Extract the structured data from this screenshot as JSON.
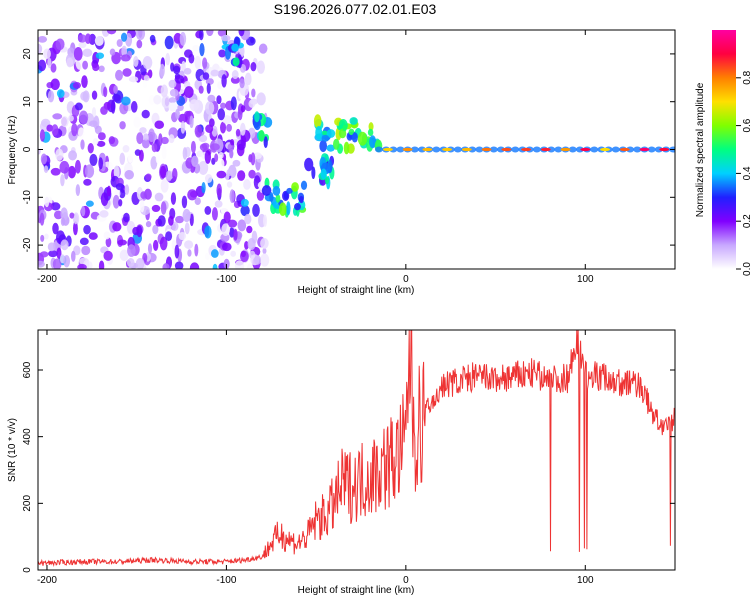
{
  "title": "S196.2026.077.02.01.E03",
  "chart_data": [
    {
      "type": "heatmap",
      "xlabel": "Height of straight line (km)",
      "ylabel": "Frequency (Hz)",
      "xlim": [
        -205,
        150
      ],
      "ylim": [
        -25,
        25
      ],
      "xticks": [
        -200,
        -100,
        0,
        100
      ],
      "yticks": [
        -20,
        -10,
        0,
        10,
        20
      ],
      "colorbar": {
        "label": "Normalized spectral amplitude",
        "range": [
          0,
          1
        ],
        "ticks": [
          "0.0",
          "0.2",
          "0.4",
          "0.6",
          "0.8"
        ],
        "colors": [
          "#ffffff",
          "#c8a8ff",
          "#8000ff",
          "#2020ff",
          "#00d0ff",
          "#00ff80",
          "#80ff00",
          "#ffe000",
          "#ff8000",
          "#ff0040",
          "#ff00a0"
        ]
      },
      "features": [
        {
          "x_range": [
            -205,
            -78
          ],
          "freq_range": [
            -25,
            25
          ],
          "kind": "noise",
          "level": 0.25
        },
        {
          "x_range": [
            -100,
            -92
          ],
          "freq_center": 20,
          "kind": "blob",
          "level": 0.45
        },
        {
          "x_range": [
            -85,
            -77
          ],
          "freq_center": 4,
          "kind": "blob",
          "level": 0.5
        },
        {
          "x_range": [
            -78,
            -55
          ],
          "freq_center": -10,
          "kind": "blob",
          "level": 0.55
        },
        {
          "x_range": [
            -55,
            -40
          ],
          "freq_center": -4,
          "kind": "blob",
          "level": 0.45
        },
        {
          "x_range": [
            -50,
            -15
          ],
          "freq_center": 3,
          "kind": "blob",
          "level": 0.6
        },
        {
          "x_range": [
            -15,
            150
          ],
          "freq_center": 0,
          "kind": "carrier",
          "level": 0.95
        }
      ]
    },
    {
      "type": "line",
      "xlabel": "Height of straight line (km)",
      "ylabel": "SNR (10 * v/v)",
      "xlim": [
        -205,
        150
      ],
      "ylim": [
        0,
        720
      ],
      "xticks": [
        -200,
        -100,
        0,
        100
      ],
      "yticks": [
        0,
        200,
        400,
        600
      ],
      "series": [
        {
          "name": "SNR",
          "color": "#ee3333",
          "x": [
            -205,
            -180,
            -160,
            -140,
            -120,
            -100,
            -90,
            -80,
            -75,
            -70,
            -65,
            -60,
            -55,
            -50,
            -45,
            -40,
            -35,
            -30,
            -25,
            -20,
            -15,
            -10,
            -5,
            0,
            2,
            5,
            10,
            15,
            20,
            25,
            30,
            40,
            50,
            60,
            70,
            80,
            90,
            95,
            100,
            110,
            120,
            130,
            135,
            140,
            145,
            150
          ],
          "y": [
            20,
            25,
            25,
            30,
            25,
            25,
            30,
            40,
            80,
            110,
            90,
            80,
            100,
            150,
            160,
            200,
            260,
            250,
            270,
            280,
            300,
            320,
            340,
            380,
            720,
            400,
            460,
            500,
            550,
            560,
            570,
            580,
            570,
            580,
            590,
            570,
            575,
            700,
            590,
            580,
            560,
            560,
            500,
            450,
            420,
            460
          ]
        }
      ]
    }
  ]
}
